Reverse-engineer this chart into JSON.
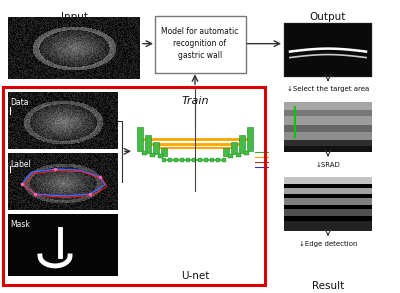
{
  "input_label": "Input",
  "output_label": "Output",
  "train_label": "Train",
  "unet_label": "U-net",
  "result_label": "Result",
  "model_box_text": "Model for automatic\nrecognition of\ngastric wall",
  "data_label": "Data",
  "label_label": "Label",
  "mask_label": "Mask",
  "step1_label": "↓Select the target area",
  "step2_label": "↓SRAD",
  "step3_label": "↓Edge detection",
  "red_border_color": "#dd0000",
  "box_border_color": "#888888",
  "arrow_color": "#333333",
  "text_color": "#111111",
  "font_size": 6.5
}
